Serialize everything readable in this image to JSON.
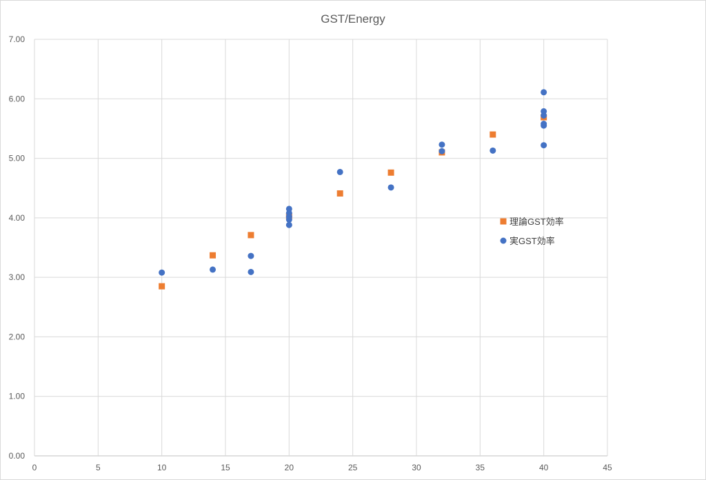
{
  "chart_data": {
    "type": "scatter",
    "title": "GST/Energy",
    "xlabel": "",
    "ylabel": "",
    "xlim": [
      0,
      45
    ],
    "ylim": [
      0,
      7
    ],
    "x_ticks": [
      0,
      5,
      10,
      15,
      20,
      25,
      30,
      35,
      40,
      45
    ],
    "y_ticks": [
      0,
      1,
      2,
      3,
      4,
      5,
      6,
      7
    ],
    "x_tick_labels": [
      "0",
      "5",
      "10",
      "15",
      "20",
      "25",
      "30",
      "35",
      "40",
      "45"
    ],
    "y_tick_labels": [
      "0.00",
      "1.00",
      "2.00",
      "3.00",
      "4.00",
      "5.00",
      "6.00",
      "7.00"
    ],
    "grid": true,
    "legend_position": "right",
    "series": [
      {
        "name": "理論GST効率",
        "marker": "square",
        "color": "#ed7d31",
        "points": [
          {
            "x": 10,
            "y": 2.85
          },
          {
            "x": 14,
            "y": 3.37
          },
          {
            "x": 17,
            "y": 3.71
          },
          {
            "x": 20,
            "y": 4.03
          },
          {
            "x": 24,
            "y": 4.41
          },
          {
            "x": 28,
            "y": 4.76
          },
          {
            "x": 32,
            "y": 5.1
          },
          {
            "x": 36,
            "y": 5.4
          },
          {
            "x": 40,
            "y": 5.69
          }
        ]
      },
      {
        "name": "実GST効率",
        "marker": "circle",
        "color": "#4472c4",
        "points": [
          {
            "x": 10,
            "y": 3.08
          },
          {
            "x": 14,
            "y": 3.13
          },
          {
            "x": 17,
            "y": 3.36
          },
          {
            "x": 17,
            "y": 3.09
          },
          {
            "x": 20,
            "y": 4.15
          },
          {
            "x": 20,
            "y": 4.08
          },
          {
            "x": 20,
            "y": 4.02
          },
          {
            "x": 20,
            "y": 3.97
          },
          {
            "x": 20,
            "y": 3.88
          },
          {
            "x": 24,
            "y": 4.77
          },
          {
            "x": 28,
            "y": 4.51
          },
          {
            "x": 32,
            "y": 5.23
          },
          {
            "x": 32,
            "y": 5.12
          },
          {
            "x": 36,
            "y": 5.13
          },
          {
            "x": 40,
            "y": 6.11
          },
          {
            "x": 40,
            "y": 5.79
          },
          {
            "x": 40,
            "y": 5.72
          },
          {
            "x": 40,
            "y": 5.58
          },
          {
            "x": 40,
            "y": 5.55
          },
          {
            "x": 40,
            "y": 5.22
          }
        ]
      }
    ]
  }
}
